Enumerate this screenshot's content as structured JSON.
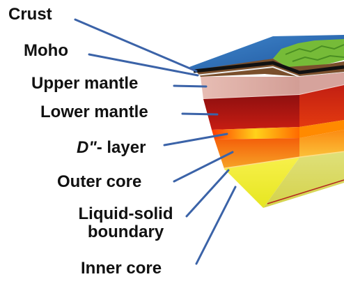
{
  "labels": {
    "crust": "Crust",
    "moho": "Moho",
    "upper_mantle": "Upper mantle",
    "lower_mantle": "Lower mantle",
    "d_layer_letter": "D\"",
    "d_layer_suffix": "- layer",
    "outer_core": "Outer core",
    "liquid_solid_line1": "Liquid-solid",
    "liquid_solid_line2": "boundary",
    "inner_core": "Inner core"
  },
  "colors": {
    "leader_line": "#3b63a8",
    "ocean": "#2e6fb8",
    "land": "#7bbf3a",
    "upper_mantle": "#d9a7a0",
    "lower_mantle": "#b01818",
    "d_layer": "#ff7a00",
    "outer_core": "#f07a10",
    "inner_core": "#e6e62a"
  }
}
